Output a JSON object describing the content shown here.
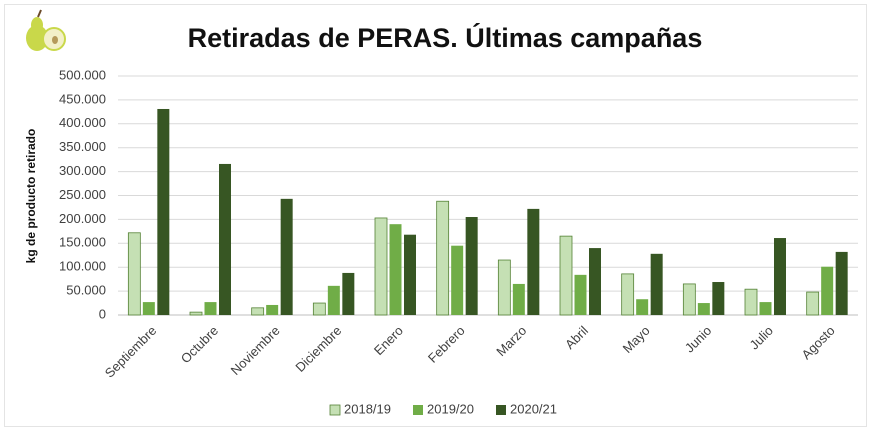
{
  "chart_data": {
    "type": "bar",
    "title": "Retiradas de PERAS. Últimas campañas",
    "y_label": "kg de producto retirado",
    "categories": [
      "Septiembre",
      "Octubre",
      "Noviembre",
      "Diciembre",
      "Enero",
      "Febrero",
      "Marzo",
      "Abril",
      "Mayo",
      "Junio",
      "Julio",
      "Agosto"
    ],
    "series": [
      {
        "name": "2018/19",
        "color": "#c5e0b4",
        "values": [
          172000,
          6000,
          15000,
          25000,
          203000,
          238000,
          115000,
          165000,
          86000,
          65000,
          54000,
          48000
        ]
      },
      {
        "name": "2019/20",
        "color": "#70ad47",
        "values": [
          27000,
          27000,
          21000,
          61000,
          190000,
          145000,
          65000,
          84000,
          33000,
          25000,
          27000,
          101000
        ]
      },
      {
        "name": "2020/21",
        "color": "#375623",
        "values": [
          431000,
          316000,
          243000,
          88000,
          168000,
          205000,
          222000,
          140000,
          128000,
          69000,
          161000,
          132000
        ]
      }
    ],
    "ylim": [
      0,
      500000
    ],
    "yticks": [
      0,
      {
        "value": 50000,
        "label": "50.000"
      },
      {
        "value": 100000,
        "label": "100.000"
      },
      {
        "value": 150000,
        "label": "150.000"
      },
      {
        "value": 200000,
        "label": "200.000"
      },
      {
        "value": 250000,
        "label": "250.000"
      },
      {
        "value": 300000,
        "label": "300.000"
      },
      {
        "value": 350000,
        "label": "350.000"
      },
      {
        "value": 400000,
        "label": "400.000"
      },
      {
        "value": 450000,
        "label": "450.000"
      },
      {
        "value": 500000,
        "label": "500.000"
      }
    ],
    "grid": true,
    "legend": "bottom"
  }
}
